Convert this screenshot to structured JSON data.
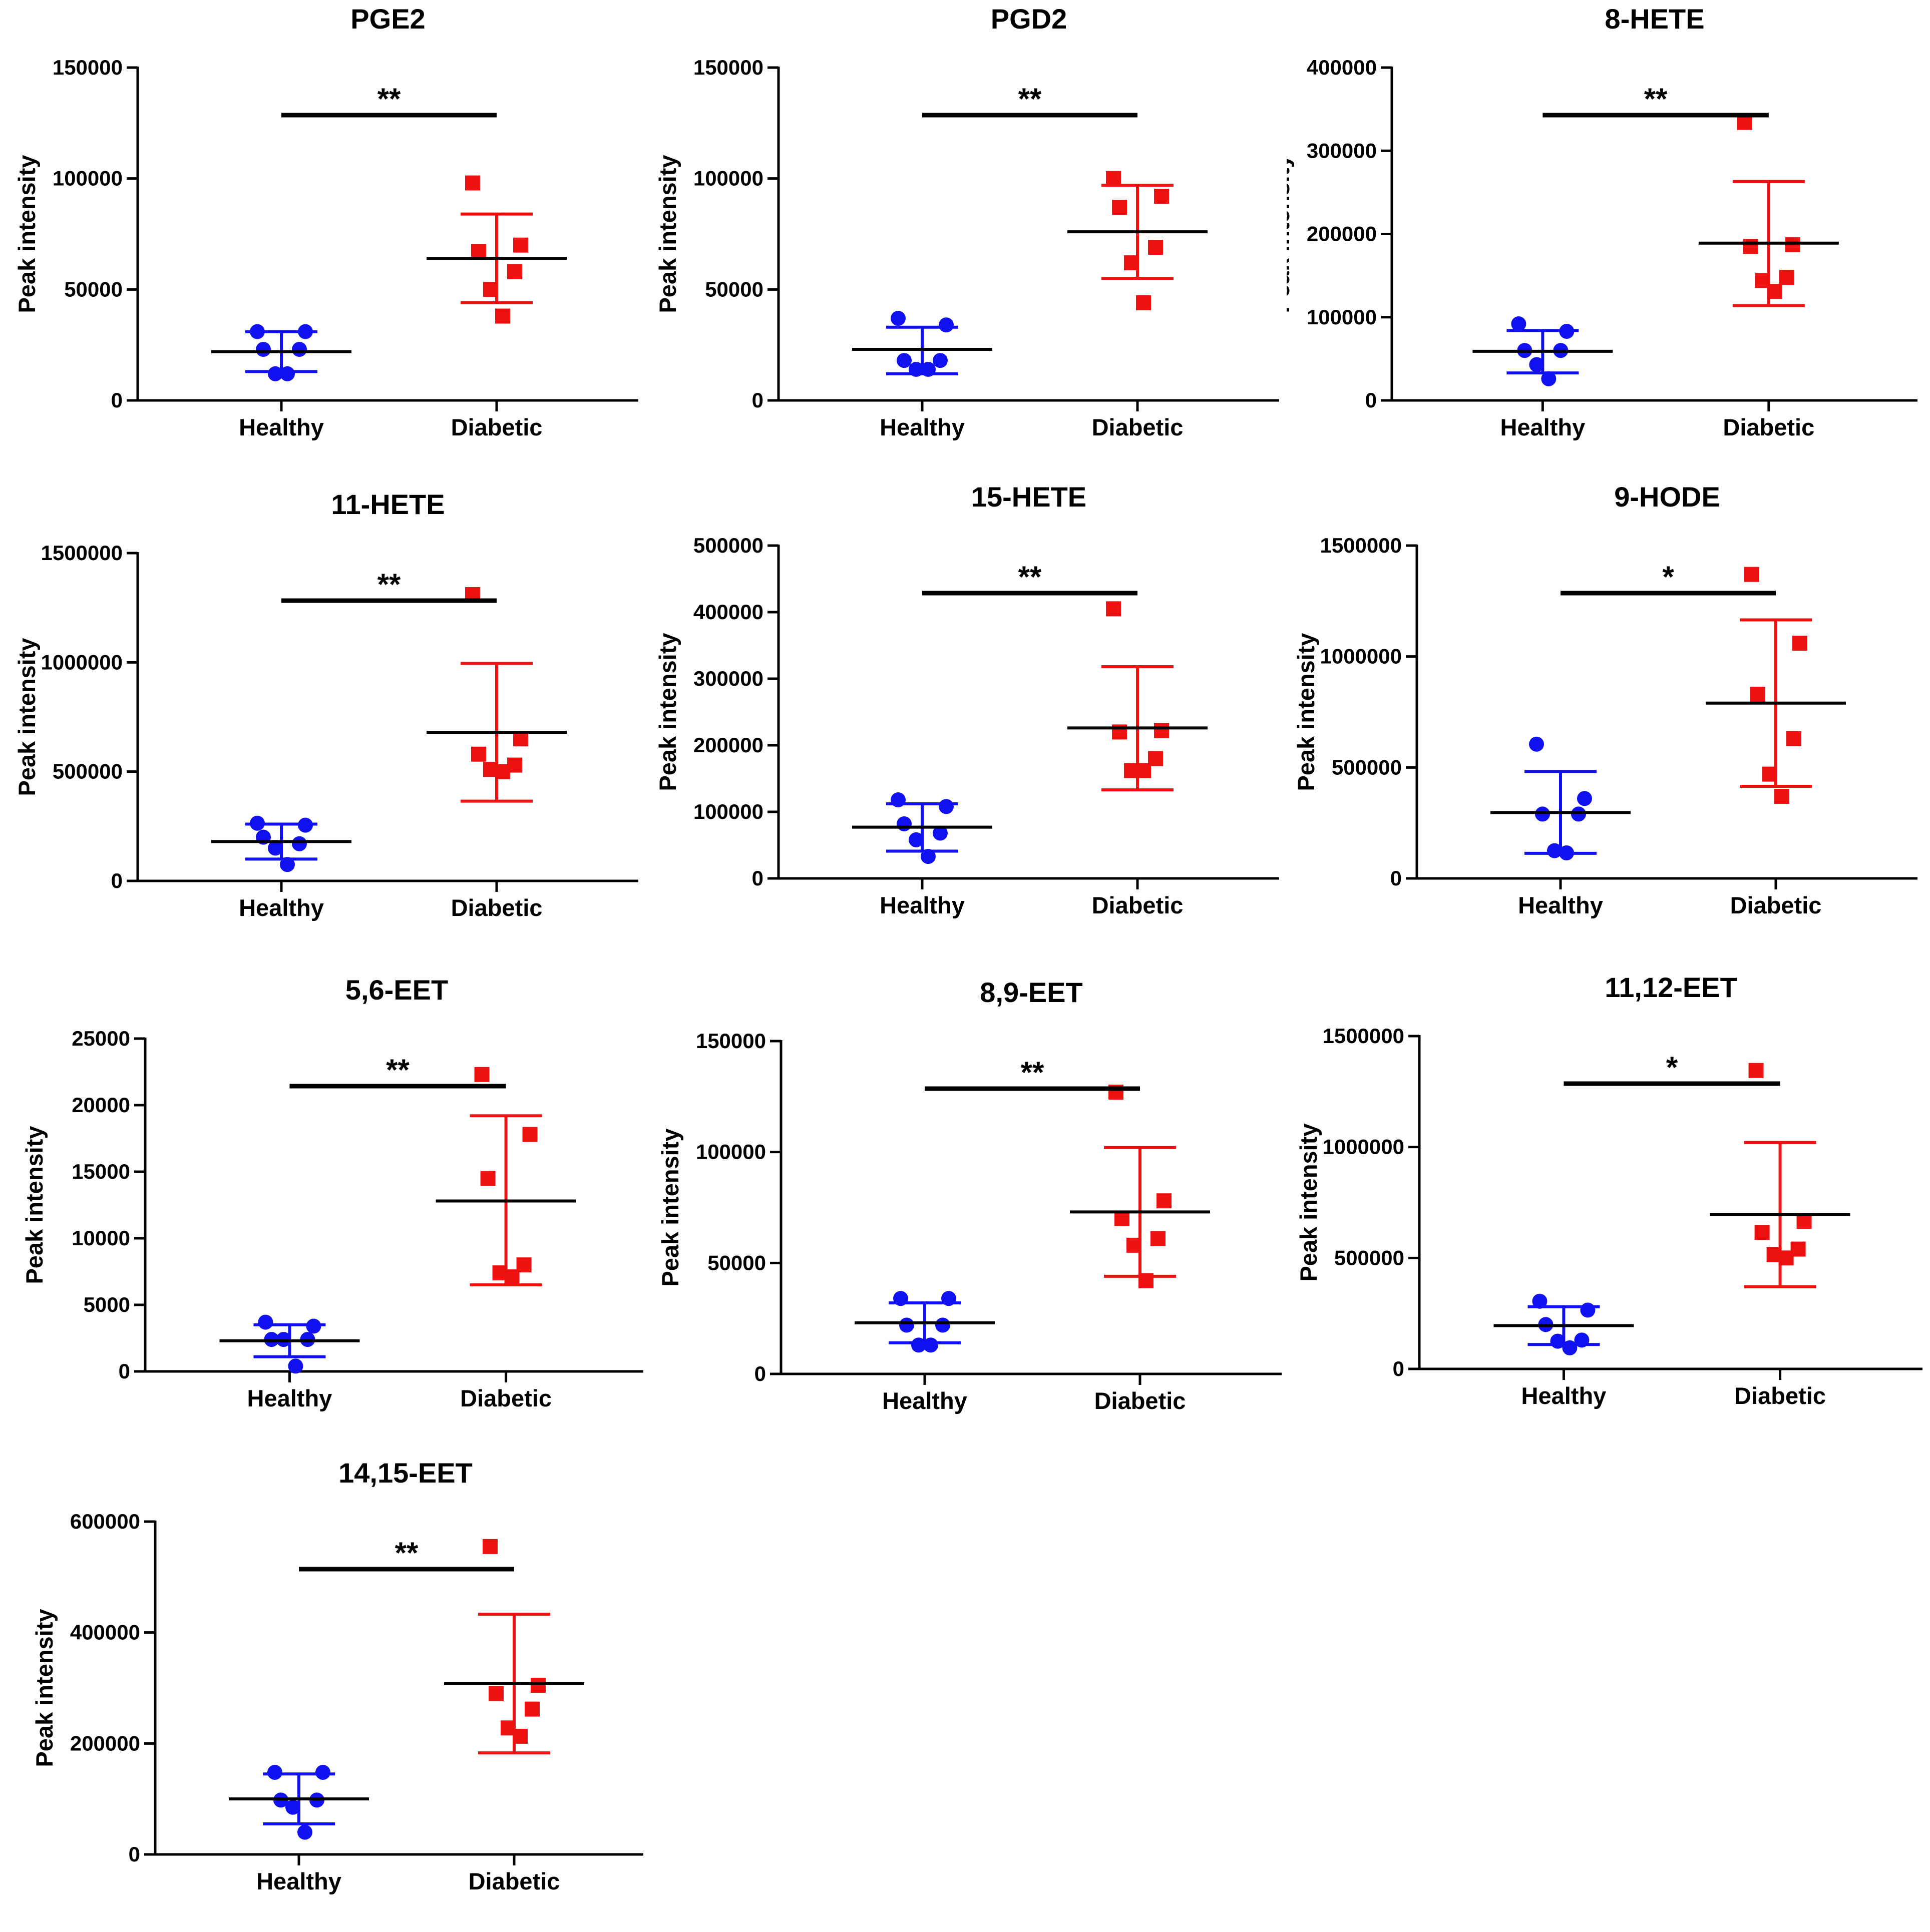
{
  "chart_data": [
    {
      "type": "scatter",
      "title": "PGE2",
      "ylabel": "Peak intensity",
      "categories": [
        "Healthy",
        "Diabetic"
      ],
      "ylim": [
        0,
        150000
      ],
      "yticks": [
        "0",
        "50000",
        "100000",
        "150000"
      ],
      "significance": "**",
      "series": [
        {
          "name": "Healthy",
          "color": "#1010f0",
          "marker": "circle",
          "values": [
            31000,
            31000,
            23000,
            23000,
            12000,
            12000
          ],
          "mean": 22000,
          "sd_low": 13000,
          "sd_high": 31000
        },
        {
          "name": "Diabetic",
          "color": "#ee1111",
          "marker": "square",
          "values": [
            98000,
            70000,
            67000,
            58000,
            50000,
            38000
          ],
          "mean": 64000,
          "sd_low": 44000,
          "sd_high": 84000
        }
      ]
    },
    {
      "type": "scatter",
      "title": "PGD2",
      "ylabel": "Peak intensity",
      "categories": [
        "Healthy",
        "Diabetic"
      ],
      "ylim": [
        0,
        150000
      ],
      "yticks": [
        "0",
        "50000",
        "100000",
        "150000"
      ],
      "significance": "**",
      "series": [
        {
          "name": "Healthy",
          "color": "#1010f0",
          "marker": "circle",
          "values": [
            37000,
            34000,
            18000,
            18000,
            14000,
            14000
          ],
          "mean": 23000,
          "sd_low": 12000,
          "sd_high": 33000
        },
        {
          "name": "Diabetic",
          "color": "#ee1111",
          "marker": "square",
          "values": [
            100000,
            92000,
            87000,
            69000,
            62000,
            44000
          ],
          "mean": 76000,
          "sd_low": 55000,
          "sd_high": 97000
        }
      ]
    },
    {
      "type": "scatter",
      "title": "8-HETE",
      "ylabel": "Peak intensity",
      "categories": [
        "Healthy",
        "Diabetic"
      ],
      "ylim": [
        0,
        400000
      ],
      "yticks": [
        "0",
        "100000",
        "200000",
        "300000",
        "400000"
      ],
      "significance": "**",
      "series": [
        {
          "name": "Healthy",
          "color": "#1010f0",
          "marker": "circle",
          "values": [
            92000,
            83000,
            60000,
            60000,
            43000,
            26000
          ],
          "mean": 59000,
          "sd_low": 33000,
          "sd_high": 84000
        },
        {
          "name": "Diabetic",
          "color": "#ee1111",
          "marker": "square",
          "values": [
            334000,
            187000,
            185000,
            148000,
            144000,
            131000
          ],
          "mean": 189000,
          "sd_low": 114000,
          "sd_high": 263000
        }
      ]
    },
    {
      "type": "scatter",
      "title": "11-HETE",
      "ylabel": "Peak intensity",
      "categories": [
        "Healthy",
        "Diabetic"
      ],
      "ylim": [
        0,
        1500000
      ],
      "yticks": [
        "0",
        "500000",
        "1000000",
        "1500000"
      ],
      "significance": "**",
      "series": [
        {
          "name": "Healthy",
          "color": "#1010f0",
          "marker": "circle",
          "values": [
            264000,
            255000,
            200000,
            170000,
            150000,
            75000
          ],
          "mean": 180000,
          "sd_low": 100000,
          "sd_high": 260000
        },
        {
          "name": "Diabetic",
          "color": "#ee1111",
          "marker": "square",
          "values": [
            1310000,
            650000,
            580000,
            530000,
            510000,
            500000
          ],
          "mean": 680000,
          "sd_low": 365000,
          "sd_high": 995000
        }
      ]
    },
    {
      "type": "scatter",
      "title": "15-HETE",
      "ylabel": "Peak intensity",
      "categories": [
        "Healthy",
        "Diabetic"
      ],
      "ylim": [
        0,
        500000
      ],
      "yticks": [
        "0",
        "100000",
        "200000",
        "300000",
        "400000",
        "500000"
      ],
      "significance": "**",
      "series": [
        {
          "name": "Healthy",
          "color": "#1010f0",
          "marker": "circle",
          "values": [
            118000,
            108000,
            82000,
            68000,
            58000,
            33000
          ],
          "mean": 77000,
          "sd_low": 41000,
          "sd_high": 112000
        },
        {
          "name": "Diabetic",
          "color": "#ee1111",
          "marker": "square",
          "values": [
            405000,
            222000,
            220000,
            180000,
            162000,
            162000
          ],
          "mean": 226000,
          "sd_low": 133000,
          "sd_high": 318000
        }
      ]
    },
    {
      "type": "scatter",
      "title": "9-HODE",
      "ylabel": "Peak intensity",
      "categories": [
        "Healthy",
        "Diabetic"
      ],
      "ylim": [
        0,
        1500000
      ],
      "yticks": [
        "0",
        "500000",
        "1000000",
        "1500000"
      ],
      "significance": "*",
      "series": [
        {
          "name": "Healthy",
          "color": "#1010f0",
          "marker": "circle",
          "values": [
            605000,
            360000,
            290000,
            290000,
            125000,
            115000
          ],
          "mean": 297000,
          "sd_low": 113000,
          "sd_high": 482000
        },
        {
          "name": "Diabetic",
          "color": "#ee1111",
          "marker": "square",
          "values": [
            1370000,
            1060000,
            830000,
            630000,
            470000,
            370000
          ],
          "mean": 790000,
          "sd_low": 415000,
          "sd_high": 1165000
        }
      ]
    },
    {
      "type": "scatter",
      "title": "5,6-EET",
      "ylabel": "Peak intensity",
      "categories": [
        "Healthy",
        "Diabetic"
      ],
      "ylim": [
        0,
        25000
      ],
      "yticks": [
        "0",
        "5000",
        "10000",
        "15000",
        "20000",
        "25000"
      ],
      "significance": "**",
      "series": [
        {
          "name": "Healthy",
          "color": "#1010f0",
          "marker": "circle",
          "values": [
            3700,
            3400,
            2400,
            2400,
            2400,
            400
          ],
          "mean": 2300,
          "sd_low": 1100,
          "sd_high": 3500
        },
        {
          "name": "Diabetic",
          "color": "#ee1111",
          "marker": "square",
          "values": [
            22300,
            17800,
            14500,
            8000,
            7400,
            7100
          ],
          "mean": 12800,
          "sd_low": 6500,
          "sd_high": 19200
        }
      ]
    },
    {
      "type": "scatter",
      "title": "8,9-EET",
      "ylabel": "Peak intensity",
      "categories": [
        "Healthy",
        "Diabetic"
      ],
      "ylim": [
        0,
        150000
      ],
      "yticks": [
        "0",
        "50000",
        "100000",
        "150000"
      ],
      "significance": "**",
      "series": [
        {
          "name": "Healthy",
          "color": "#1010f0",
          "marker": "circle",
          "values": [
            34000,
            34000,
            22000,
            22000,
            13000,
            13000
          ],
          "mean": 23000,
          "sd_low": 14000,
          "sd_high": 32000
        },
        {
          "name": "Diabetic",
          "color": "#ee1111",
          "marker": "square",
          "values": [
            127000,
            78000,
            70000,
            61000,
            58000,
            42000
          ],
          "mean": 73000,
          "sd_low": 44000,
          "sd_high": 102000
        }
      ]
    },
    {
      "type": "scatter",
      "title": "11,12-EET",
      "ylabel": "Peak intensity",
      "categories": [
        "Healthy",
        "Diabetic"
      ],
      "ylim": [
        0,
        1500000
      ],
      "yticks": [
        "0",
        "500000",
        "1000000",
        "1500000"
      ],
      "significance": "*",
      "series": [
        {
          "name": "Healthy",
          "color": "#1010f0",
          "marker": "circle",
          "values": [
            305000,
            265000,
            200000,
            130000,
            125000,
            95000
          ],
          "mean": 195000,
          "sd_low": 110000,
          "sd_high": 280000
        },
        {
          "name": "Diabetic",
          "color": "#ee1111",
          "marker": "square",
          "values": [
            1345000,
            665000,
            615000,
            540000,
            515000,
            500000
          ],
          "mean": 695000,
          "sd_low": 370000,
          "sd_high": 1020000
        }
      ]
    },
    {
      "type": "scatter",
      "title": "14,15-EET",
      "ylabel": "Peak intensity",
      "categories": [
        "Healthy",
        "Diabetic"
      ],
      "ylim": [
        0,
        600000
      ],
      "yticks": [
        "0",
        "200000",
        "400000",
        "600000"
      ],
      "significance": "**",
      "series": [
        {
          "name": "Healthy",
          "color": "#1010f0",
          "marker": "circle",
          "values": [
            148000,
            148000,
            98000,
            98000,
            85000,
            40000
          ],
          "mean": 100000,
          "sd_low": 55000,
          "sd_high": 145000
        },
        {
          "name": "Diabetic",
          "color": "#ee1111",
          "marker": "square",
          "values": [
            555000,
            305000,
            290000,
            262000,
            228000,
            213000
          ],
          "mean": 308000,
          "sd_low": 183000,
          "sd_high": 433000
        }
      ]
    }
  ]
}
